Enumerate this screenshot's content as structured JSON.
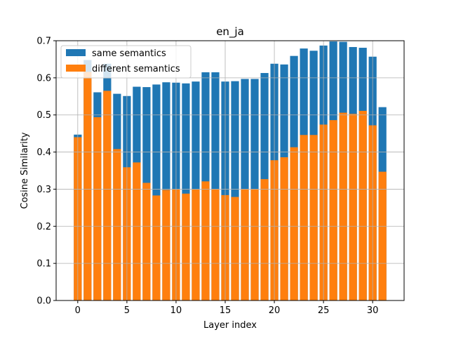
{
  "chart_data": {
    "type": "bar",
    "title": "en_ja",
    "xlabel": "Layer index",
    "ylabel": "Cosine Similarity",
    "x": [
      0,
      1,
      2,
      3,
      4,
      5,
      6,
      7,
      8,
      9,
      10,
      11,
      12,
      13,
      14,
      15,
      16,
      17,
      18,
      19,
      20,
      21,
      22,
      23,
      24,
      25,
      26,
      27,
      28,
      29,
      30,
      31
    ],
    "xlim": [
      -2.2,
      33.2
    ],
    "ylim": [
      0,
      0.7
    ],
    "xticks": [
      0,
      5,
      10,
      15,
      20,
      25,
      30
    ],
    "xtick_labels": [
      "0",
      "5",
      "10",
      "15",
      "20",
      "25",
      "30"
    ],
    "yticks": [
      0.0,
      0.1,
      0.2,
      0.3,
      0.4,
      0.5,
      0.6,
      0.7
    ],
    "ytick_labels": [
      "0.0",
      "0.1",
      "0.2",
      "0.3",
      "0.4",
      "0.5",
      "0.6",
      "0.7"
    ],
    "grid": true,
    "legend_position": "top-left",
    "series": [
      {
        "name": "same semantics",
        "color": "#1f77b4",
        "values": [
          0.447,
          0.648,
          0.561,
          0.638,
          0.557,
          0.551,
          0.576,
          0.575,
          0.582,
          0.588,
          0.587,
          0.585,
          0.59,
          0.615,
          0.615,
          0.59,
          0.591,
          0.597,
          0.597,
          0.613,
          0.638,
          0.636,
          0.659,
          0.679,
          0.673,
          0.687,
          0.698,
          0.697,
          0.683,
          0.681,
          0.657,
          0.521
        ]
      },
      {
        "name": "different semantics",
        "color": "#ff7f0e",
        "values": [
          0.44,
          0.616,
          0.494,
          0.565,
          0.408,
          0.359,
          0.372,
          0.317,
          0.283,
          0.298,
          0.299,
          0.288,
          0.299,
          0.321,
          0.3,
          0.284,
          0.279,
          0.3,
          0.3,
          0.327,
          0.378,
          0.386,
          0.413,
          0.446,
          0.446,
          0.474,
          0.486,
          0.506,
          0.503,
          0.511,
          0.472,
          0.347
        ]
      }
    ]
  }
}
